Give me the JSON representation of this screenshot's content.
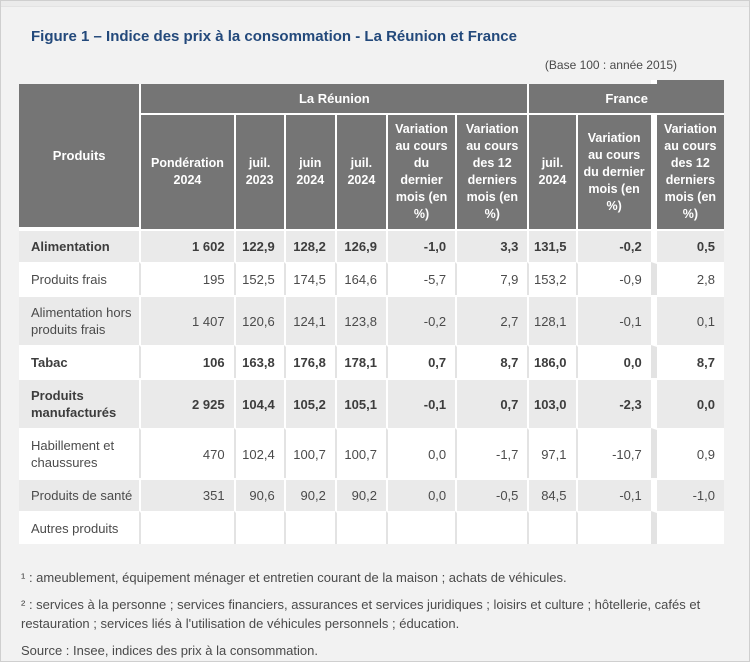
{
  "page": {
    "title": "Figure 1 – Indice des prix à la consommation - La Réunion et France",
    "base_note": "(Base 100 : année 2015)"
  },
  "colors": {
    "title_blue": "#23497b",
    "header_gray": "#757575",
    "row_alt_gray": "#eaeaea",
    "page_bg": "#f2f2f2"
  },
  "table": {
    "produits_header": "Produits",
    "groups": [
      {
        "label": "La Réunion"
      },
      {
        "label": "France"
      }
    ],
    "columns": [
      "Pondération 2024",
      "juil. 2023",
      "juin 2024",
      "juil. 2024",
      "Variation au cours du dernier mois (en %)",
      "Variation au cours des 12 derniers mois (en %)",
      "juil. 2024",
      "Variation au cours du dernier mois (en %)",
      "Variation au cours des 12 derniers mois (en %)"
    ],
    "rows": [
      {
        "label": "Alimentation",
        "bold": true,
        "values": [
          "1 602",
          "122,9",
          "128,2",
          "126,9",
          "-1,0",
          "3,3",
          "131,5",
          "-0,2",
          "0,5"
        ]
      },
      {
        "label": "Produits frais",
        "bold": false,
        "values": [
          "195",
          "152,5",
          "174,5",
          "164,6",
          "-5,7",
          "7,9",
          "153,2",
          "-0,9",
          "2,8"
        ]
      },
      {
        "label": "Alimentation hors produits frais",
        "bold": false,
        "values": [
          "1 407",
          "120,6",
          "124,1",
          "123,8",
          "-0,2",
          "2,7",
          "128,1",
          "-0,1",
          "0,1"
        ]
      },
      {
        "label": "Tabac",
        "bold": true,
        "values": [
          "106",
          "163,8",
          "176,8",
          "178,1",
          "0,7",
          "8,7",
          "186,0",
          "0,0",
          "8,7"
        ]
      },
      {
        "label": "Produits manufacturés",
        "bold": true,
        "values": [
          "2 925",
          "104,4",
          "105,2",
          "105,1",
          "-0,1",
          "0,7",
          "103,0",
          "-2,3",
          "0,0"
        ]
      },
      {
        "label": "Habillement et chaussures",
        "bold": false,
        "values": [
          "470",
          "102,4",
          "100,7",
          "100,7",
          "0,0",
          "-1,7",
          "97,1",
          "-10,7",
          "0,9"
        ]
      },
      {
        "label": "Produits de santé",
        "bold": false,
        "values": [
          "351",
          "90,6",
          "90,2",
          "90,2",
          "0,0",
          "-0,5",
          "84,5",
          "-0,1",
          "-1,0"
        ]
      },
      {
        "label": "Autres produits",
        "bold": false,
        "values": [
          "",
          "",
          "",
          "",
          "",
          "",
          "",
          "",
          ""
        ]
      }
    ]
  },
  "footnotes": [
    "¹ : ameublement, équipement ménager et entretien courant de la maison ; achats de véhicules.",
    "² : services à la personne ; services financiers, assurances et services juridiques ; loisirs et culture ; hôtellerie, cafés et restauration ; services liés à l'utilisation de véhicules personnels ; éducation."
  ],
  "source": "Source : Insee, indices des prix à la consommation."
}
